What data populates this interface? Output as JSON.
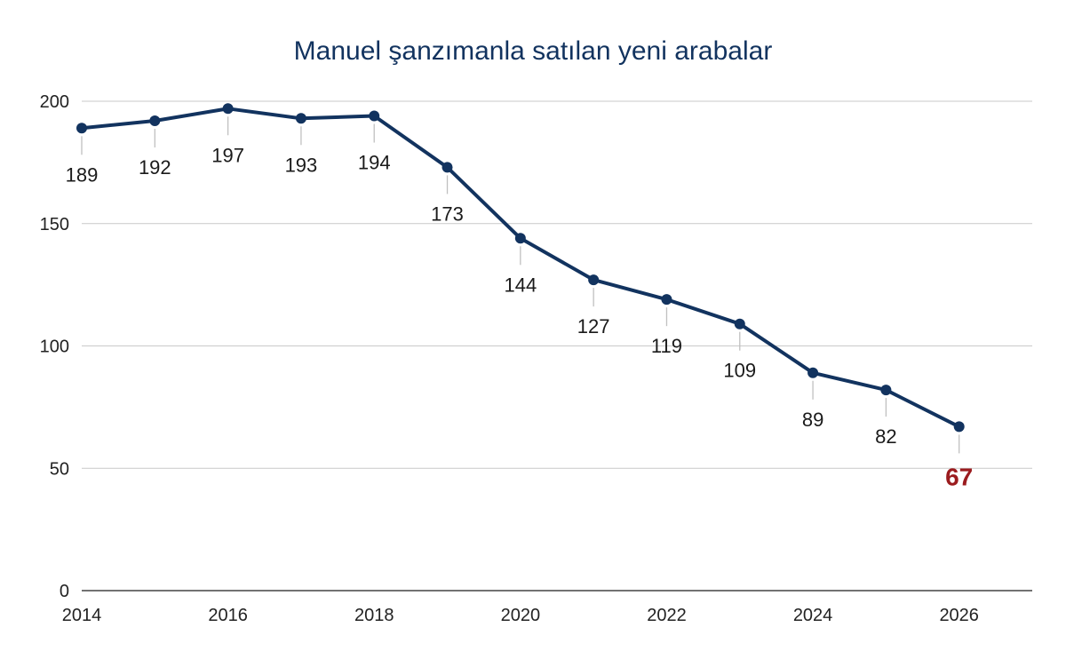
{
  "chart_data": {
    "type": "line",
    "title": "Manuel şanzımanla satılan yeni arabalar",
    "xlabel": "",
    "ylabel": "",
    "x": [
      2014,
      2015,
      2016,
      2017,
      2018,
      2019,
      2020,
      2021,
      2022,
      2023,
      2024,
      2025,
      2026
    ],
    "series": [
      {
        "values": [
          189,
          192,
          197,
          193,
          194,
          173,
          144,
          127,
          119,
          109,
          89,
          82,
          67
        ]
      }
    ],
    "data_labels": [
      "189",
      "192",
      "197",
      "193",
      "194",
      "173",
      "144",
      "127",
      "119",
      "109",
      "89",
      "82",
      "67"
    ],
    "highlight_index": 12,
    "xticks": [
      "2014",
      "2016",
      "2018",
      "2020",
      "2022",
      "2024",
      "2026"
    ],
    "yticks": [
      "0",
      "50",
      "100",
      "150",
      "200"
    ],
    "xlim": [
      2014,
      2027
    ],
    "ylim": [
      0,
      200
    ],
    "grid": true,
    "legend": "none",
    "colors": {
      "line": "#12335f",
      "label": "#1a1a1a",
      "highlight": "#9b1b1e",
      "grid": "#c9c9c9",
      "leader": "#c0c0c0",
      "axis": "#444444"
    }
  }
}
